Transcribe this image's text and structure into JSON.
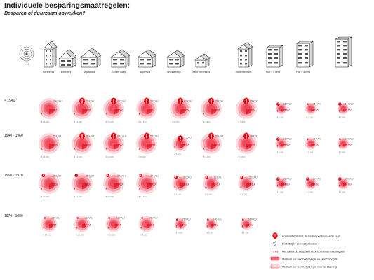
{
  "title": "Individuele besparingsmaatregelen:",
  "subtitle": "Besparen of duurzaam opwekken?",
  "scale_label": "≈ kJ",
  "colors": {
    "red": "#e30613",
    "glow_outer": "#fadadd",
    "glow_mid": "#f5a3ad",
    "glow_inner": "#ee6b7a",
    "disc": "#ee4c5c",
    "text_red": "#c8102e"
  },
  "chart_data": {
    "type": "bubble",
    "title": "Individuele besparingsmaatregelen:",
    "subtitle": "Besparen of duurzaam opwekken?",
    "building_types": [
      "Herenhuis",
      "Boerderij",
      "Vrijstaand",
      "Zonder / kap",
      "Bijdehuis",
      "Woonzeeltje",
      "Etage herenhuis",
      "Studentenhuis",
      "Flat < 4 verd",
      "Flat > 4 verd"
    ],
    "periods": [
      "< 1940",
      "1940 - 1960",
      "1960 - 1970",
      "1970 - 1980"
    ],
    "rows": [
      {
        "period": "< 1940",
        "cells": [
          {
            "gj": "134 K/GJ",
            "red": "-9 GJ",
            "cost": "€ 15.400",
            "size": 4,
            "icon": "none"
          },
          {
            "gj": "62 K/GJ",
            "red": "-11 GJ",
            "cost": "€ 13.400",
            "size": 4,
            "icon": "warn"
          },
          {
            "gj": "62 K/GJ",
            "red": "-12 GJ",
            "cost": "€ 13.400",
            "size": 4,
            "icon": "warn"
          },
          {
            "gj": "59 K/GJ",
            "red": "-8 GJ",
            "cost": "€ 11.600",
            "size": 4,
            "icon": "warn"
          },
          {
            "gj": "67 K/GJ",
            "red": "-67 GJ",
            "cost": "€ 8.000",
            "size": 4,
            "icon": "warn"
          },
          {
            "gj": "68 K/GJ",
            "red": "-11 GJ",
            "cost": "€ 7.800",
            "size": 4,
            "icon": "warn"
          },
          {
            "gj": "68 K/GJ",
            "red": "-10 GJ",
            "cost": "€ 7.800",
            "size": 4,
            "icon": "warn"
          },
          {
            "gj": "28 K/GJ",
            "red": "-26 GJ",
            "cost": "€ 7.000",
            "size": 2,
            "icon": "small"
          },
          {
            "gj": "26 K/GJ",
            "red": "-13 GJ",
            "cost": "€ 7.100",
            "size": 2,
            "icon": "dot"
          },
          {
            "gj": "16 K/GJ",
            "red": "-26 GJ",
            "cost": "€ 7.300",
            "size": 2,
            "icon": "small"
          }
        ]
      },
      {
        "period": "1940 - 1960",
        "cells": [
          {
            "gj": "21 K/GJ",
            "red": "-10 GJ",
            "cost": "€ 14.400",
            "size": 4,
            "icon": "none"
          },
          {
            "gj": "68 K/GJ",
            "red": "-10 GJ",
            "cost": "€ 13.100",
            "size": 4,
            "icon": "warn"
          },
          {
            "gj": "64 K/GJ",
            "red": "-12 GJ",
            "cost": "€ 12.300",
            "size": 4,
            "icon": "warn"
          },
          {
            "gj": "53 K/GJ",
            "red": "-11 GJ",
            "cost": "€ 8.600",
            "size": 4,
            "icon": "warn"
          },
          {
            "gj": "71 K/GJ",
            "red": "-36 GJ",
            "cost": "€ 8.400",
            "size": 3,
            "icon": "warn"
          },
          {
            "gj": "76 K/GJ",
            "red": "-11 GJ",
            "cost": "€ 7.300",
            "size": 4,
            "icon": "warn"
          },
          {
            "gj": "68 K/GJ",
            "red": "-11 GJ",
            "cost": "€ 7.800",
            "size": 4,
            "icon": "warn"
          },
          {
            "gj": "29 K/GJ",
            "red": "-26 GJ",
            "cost": "€ 6.800",
            "size": 2,
            "icon": "small"
          },
          {
            "gj": "36 K/GJ",
            "red": "-26 GJ",
            "cost": "€ 7.100",
            "size": 2,
            "icon": "dot"
          },
          {
            "gj": "29 K/GJ",
            "red": "-26 GJ",
            "cost": "€ 7.300",
            "size": 2,
            "icon": "dot"
          }
        ]
      },
      {
        "period": "1960 - 1970",
        "cells": [
          {
            "gj": "38 K/GJ",
            "red": "-17 GJ",
            "cost": "€ 12.400",
            "size": 4,
            "icon": "small"
          },
          {
            "gj": "29 K/GJ",
            "red": "-24 GJ",
            "cost": "€ 11.400",
            "size": 4,
            "icon": "small"
          },
          {
            "gj": "53 K/GJ",
            "red": "-24 GJ",
            "cost": "€ 10.500",
            "size": 4,
            "icon": "small"
          },
          {
            "gj": "34 K/GJ",
            "red": "-20 GJ",
            "cost": "€ 11.000",
            "size": 4,
            "icon": "small"
          },
          {
            "gj": "38 K/GJ",
            "red": "-16 GJ",
            "cost": "€ 8.200",
            "size": 3,
            "icon": "small"
          },
          {
            "gj": "22 K/GJ",
            "red": "-16 GJ",
            "cost": "€ 6.200",
            "size": 3,
            "icon": "small"
          },
          {
            "gj": "33 K/GJ",
            "red": "-36 GJ",
            "cost": "€ 6.700",
            "size": 3,
            "icon": "small"
          },
          {
            "gj": "28 K/GJ",
            "red": "-14 GJ",
            "cost": "€ 7.000",
            "size": 2,
            "icon": "small"
          },
          {
            "gj": "32 K/GJ",
            "red": "-14 GJ",
            "cost": "€ 7.000",
            "size": 2,
            "icon": "small"
          },
          {
            "gj": "28 K/GJ",
            "red": "-14 GJ",
            "cost": "€ 7.300",
            "size": 2,
            "icon": "small"
          }
        ]
      },
      {
        "period": "1970 - 1980",
        "cells": [
          {
            "gj": "79 K/GJ",
            "red": "-3 GJ",
            "cost": "€ 13.700",
            "size": 3,
            "icon": "dot"
          },
          {
            "gj": "33 K/GJ",
            "red": "-13 GJ",
            "cost": "€ 16.300",
            "size": 3,
            "icon": "dot"
          },
          {
            "gj": "13 K/GJ",
            "red": "-5 GJ",
            "cost": "€ 10.200",
            "size": 3,
            "icon": "dot"
          },
          {
            "gj": "79 K/GJ",
            "red": "-3 GJ",
            "cost": "€ 8.800",
            "size": 3,
            "icon": "dot"
          },
          {
            "gj": "71 K/GJ",
            "red": "-9 GJ",
            "cost": "€ 6.000",
            "size": 2,
            "icon": "dot"
          },
          {
            "gj": "100 K/GJ",
            "red": "-3 GJ",
            "cost": "€ 5.200",
            "size": 2,
            "icon": "dot"
          },
          {
            "gj": "66 K/GJ",
            "red": "-4 GJ",
            "cost": "€ 6.700",
            "size": 2,
            "icon": "dot"
          }
        ]
      }
    ]
  },
  "legend": {
    "items": [
      {
        "kind": "warn",
        "text": "Kosteneffectiviteit; de kosten per bespaarde GJe"
      },
      {
        "kind": "euro",
        "text": "De feitelijke eenmalige kosten"
      },
      {
        "kind": "red",
        "text": "Het aantal GJ bespaard door isolerende maatregelen",
        "sample": "- 3 GJ"
      },
      {
        "kind": "box-dark",
        "text": "Verbruik per woningtypologie na labelsprong B"
      },
      {
        "kind": "box-light",
        "text": "Verbruik per woningtypologie voor labelsprong"
      }
    ]
  }
}
